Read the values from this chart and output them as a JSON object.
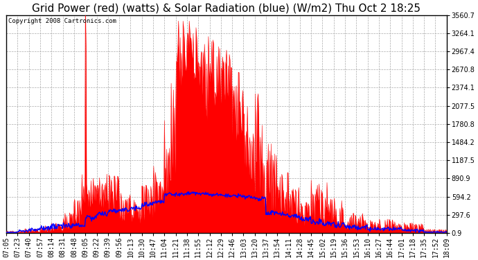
{
  "title": "Grid Power (red) (watts) & Solar Radiation (blue) (W/m2) Thu Oct 2 18:25",
  "copyright": "Copyright 2008 Cartronics.com",
  "background_color": "#ffffff",
  "plot_bg_color": "#ffffff",
  "grid_color": "#aaaaaa",
  "red_color": "#ff0000",
  "blue_color": "#0000ff",
  "ymin": 0.9,
  "ymax": 3560.7,
  "yticks": [
    0.9,
    297.6,
    594.2,
    890.9,
    1187.5,
    1484.2,
    1780.8,
    2077.5,
    2374.1,
    2670.8,
    2967.4,
    3264.1,
    3560.7
  ],
  "xtick_labels": [
    "07:05",
    "07:23",
    "07:40",
    "07:57",
    "08:14",
    "08:31",
    "08:48",
    "09:05",
    "09:22",
    "09:39",
    "09:56",
    "10:13",
    "10:30",
    "10:47",
    "11:04",
    "11:21",
    "11:38",
    "11:55",
    "12:12",
    "12:29",
    "12:46",
    "13:03",
    "13:20",
    "13:37",
    "13:54",
    "14:11",
    "14:28",
    "14:45",
    "15:02",
    "15:19",
    "15:36",
    "15:53",
    "16:10",
    "16:27",
    "16:44",
    "17:01",
    "17:18",
    "17:35",
    "17:52",
    "18:09"
  ],
  "title_fontsize": 11,
  "tick_fontsize": 7,
  "copyright_fontsize": 6.5
}
